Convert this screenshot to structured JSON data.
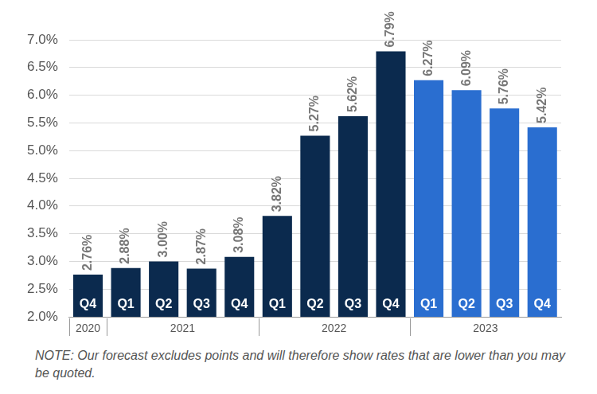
{
  "chart_data": {
    "type": "bar",
    "categories": [
      "Q4",
      "Q1",
      "Q2",
      "Q3",
      "Q4",
      "Q1",
      "Q2",
      "Q3",
      "Q4",
      "Q1",
      "Q2",
      "Q3",
      "Q4"
    ],
    "category_groups": [
      "2020",
      "2021",
      "2021",
      "2021",
      "2021",
      "2022",
      "2022",
      "2022",
      "2022",
      "2023",
      "2023",
      "2023",
      "2023"
    ],
    "values": [
      2.76,
      2.88,
      3.0,
      2.87,
      3.08,
      3.82,
      5.27,
      5.62,
      6.79,
      6.27,
      6.09,
      5.76,
      5.42
    ],
    "value_labels": [
      "2.76%",
      "2.88%",
      "3.00%",
      "2.87%",
      "3.08%",
      "3.82%",
      "5.27%",
      "5.62%",
      "6.79%",
      "6.27%",
      "6.09%",
      "5.76%",
      "5.42%"
    ],
    "colors": [
      "#0b2a4e",
      "#0b2a4e",
      "#0b2a4e",
      "#0b2a4e",
      "#0b2a4e",
      "#0b2a4e",
      "#0b2a4e",
      "#0b2a4e",
      "#0b2a4e",
      "#2a6ed0",
      "#2a6ed0",
      "#2a6ed0",
      "#2a6ed0"
    ],
    "ylim": [
      2,
      7
    ],
    "yticks": [
      {
        "value": 2,
        "label": "2.0%"
      },
      {
        "value": 2.5,
        "label": "2.5%"
      },
      {
        "value": 3,
        "label": "3.0%"
      },
      {
        "value": 3.5,
        "label": "3.5%"
      },
      {
        "value": 4,
        "label": "4.0%"
      },
      {
        "value": 4.5,
        "label": "4.5%"
      },
      {
        "value": 5,
        "label": "5.0%"
      },
      {
        "value": 5.5,
        "label": "5.5%"
      },
      {
        "value": 6,
        "label": "6.0%"
      },
      {
        "value": 6.5,
        "label": "6.5%"
      },
      {
        "value": 7,
        "label": "7.0%"
      }
    ],
    "grid": true,
    "data_labels": true,
    "note": "NOTE: Our forecast excludes points and will therefore show rates that are lower than you may be quoted."
  }
}
